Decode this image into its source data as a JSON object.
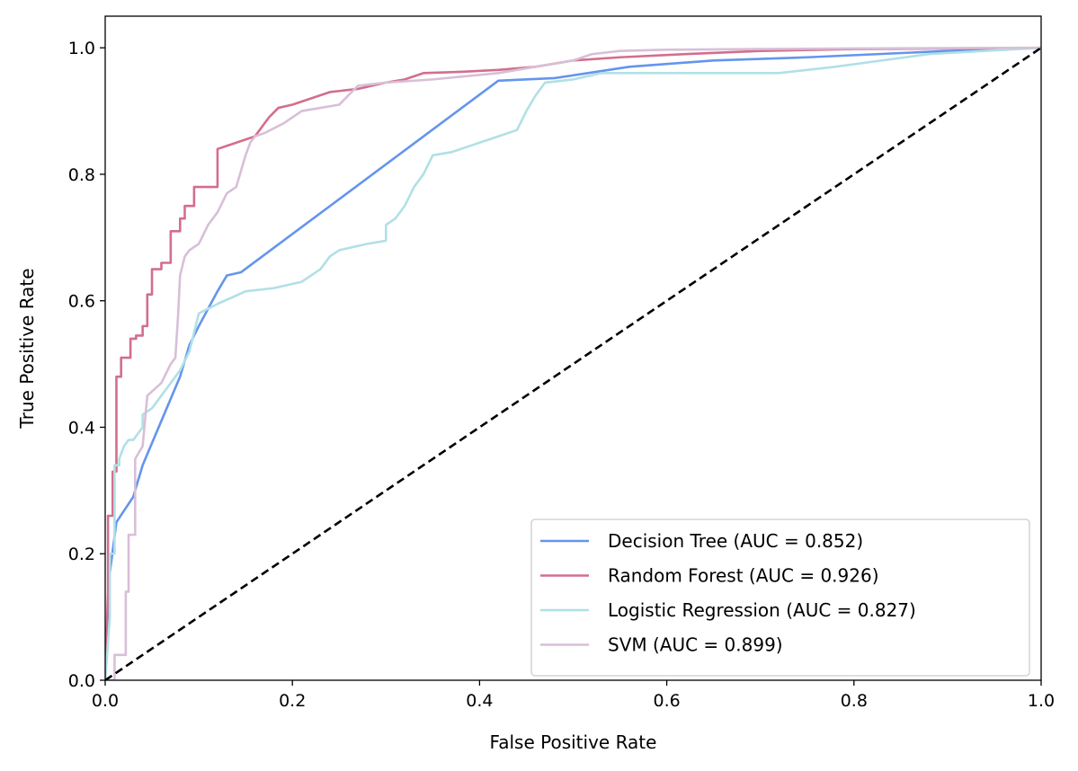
{
  "chart_data": {
    "type": "line",
    "title": "",
    "xlabel": "False Positive Rate",
    "ylabel": "True Positive Rate",
    "xlim": [
      0.0,
      1.0
    ],
    "ylim": [
      0.0,
      1.05
    ],
    "xticks": [
      "0.0",
      "0.2",
      "0.4",
      "0.6",
      "0.8",
      "1.0"
    ],
    "yticks": [
      "0.0",
      "0.2",
      "0.4",
      "0.6",
      "0.8",
      "1.0"
    ],
    "grid": false,
    "legend_position": "lower-right",
    "series": [
      {
        "name": "Decision Tree (AUC = 0.852)",
        "color": "#6495ED",
        "x": [
          0.0,
          0.005,
          0.012,
          0.03,
          0.04,
          0.06,
          0.08,
          0.09,
          0.1,
          0.12,
          0.13,
          0.145,
          0.42,
          0.48,
          0.56,
          0.65,
          0.75,
          0.9,
          1.0
        ],
        "y": [
          0.0,
          0.17,
          0.25,
          0.29,
          0.34,
          0.41,
          0.48,
          0.53,
          0.56,
          0.615,
          0.64,
          0.645,
          0.948,
          0.952,
          0.97,
          0.98,
          0.985,
          0.995,
          1.0
        ]
      },
      {
        "name": "Random Forest (AUC = 0.926)",
        "color": "#D36E8C",
        "x": [
          0.0,
          0.003,
          0.003,
          0.008,
          0.008,
          0.012,
          0.012,
          0.017,
          0.017,
          0.027,
          0.027,
          0.033,
          0.033,
          0.04,
          0.04,
          0.045,
          0.045,
          0.05,
          0.05,
          0.06,
          0.06,
          0.07,
          0.07,
          0.08,
          0.08,
          0.085,
          0.085,
          0.095,
          0.095,
          0.1,
          0.1,
          0.12,
          0.12,
          0.16,
          0.165,
          0.17,
          0.175,
          0.185,
          0.2,
          0.22,
          0.24,
          0.27,
          0.3,
          0.32,
          0.34,
          0.38,
          0.42,
          0.46,
          0.5,
          0.55,
          0.62,
          0.7,
          0.8,
          1.0
        ],
        "y": [
          0.0,
          0.14,
          0.26,
          0.26,
          0.33,
          0.33,
          0.48,
          0.48,
          0.51,
          0.51,
          0.54,
          0.54,
          0.545,
          0.545,
          0.56,
          0.56,
          0.61,
          0.61,
          0.65,
          0.65,
          0.66,
          0.66,
          0.71,
          0.71,
          0.73,
          0.73,
          0.75,
          0.75,
          0.78,
          0.78,
          0.78,
          0.78,
          0.84,
          0.86,
          0.87,
          0.88,
          0.89,
          0.905,
          0.91,
          0.92,
          0.93,
          0.935,
          0.945,
          0.95,
          0.96,
          0.962,
          0.965,
          0.97,
          0.98,
          0.985,
          0.99,
          0.995,
          0.998,
          1.0
        ]
      },
      {
        "name": "Logistic Regression (AUC = 0.827)",
        "color": "#B0E0E6",
        "x": [
          0.0,
          0.005,
          0.005,
          0.01,
          0.01,
          0.015,
          0.015,
          0.02,
          0.025,
          0.03,
          0.04,
          0.04,
          0.05,
          0.06,
          0.07,
          0.08,
          0.09,
          0.1,
          0.12,
          0.15,
          0.18,
          0.21,
          0.23,
          0.24,
          0.25,
          0.28,
          0.3,
          0.3,
          0.31,
          0.32,
          0.33,
          0.34,
          0.35,
          0.37,
          0.38,
          0.4,
          0.42,
          0.44,
          0.45,
          0.46,
          0.47,
          0.5,
          0.53,
          0.72,
          0.78,
          0.83,
          0.88,
          1.0
        ],
        "y": [
          0.0,
          0.1,
          0.2,
          0.2,
          0.34,
          0.34,
          0.35,
          0.37,
          0.38,
          0.38,
          0.4,
          0.42,
          0.43,
          0.45,
          0.47,
          0.49,
          0.52,
          0.58,
          0.595,
          0.615,
          0.62,
          0.63,
          0.65,
          0.67,
          0.68,
          0.69,
          0.695,
          0.72,
          0.73,
          0.75,
          0.78,
          0.8,
          0.83,
          0.835,
          0.84,
          0.85,
          0.86,
          0.87,
          0.9,
          0.925,
          0.945,
          0.95,
          0.96,
          0.96,
          0.97,
          0.98,
          0.99,
          1.0
        ]
      },
      {
        "name": "SVM (AUC = 0.899)",
        "color": "#D8BFD8",
        "x": [
          0.0,
          0.01,
          0.01,
          0.022,
          0.022,
          0.025,
          0.025,
          0.032,
          0.032,
          0.04,
          0.045,
          0.06,
          0.07,
          0.075,
          0.078,
          0.08,
          0.085,
          0.09,
          0.1,
          0.11,
          0.12,
          0.13,
          0.14,
          0.15,
          0.155,
          0.16,
          0.17,
          0.19,
          0.21,
          0.25,
          0.27,
          0.3,
          0.35,
          0.42,
          0.46,
          0.5,
          0.52,
          0.55,
          0.6,
          0.7,
          0.8,
          1.0
        ],
        "y": [
          0.0,
          0.0,
          0.04,
          0.04,
          0.14,
          0.14,
          0.23,
          0.23,
          0.35,
          0.37,
          0.45,
          0.47,
          0.5,
          0.51,
          0.58,
          0.64,
          0.67,
          0.68,
          0.69,
          0.72,
          0.74,
          0.77,
          0.78,
          0.83,
          0.85,
          0.86,
          0.865,
          0.88,
          0.9,
          0.91,
          0.94,
          0.945,
          0.95,
          0.96,
          0.97,
          0.98,
          0.99,
          0.995,
          0.997,
          0.998,
          0.999,
          1.0
        ]
      },
      {
        "name": "",
        "color": "#000000",
        "dashed": true,
        "x": [
          0.0,
          1.0
        ],
        "y": [
          0.0,
          1.0
        ]
      }
    ]
  }
}
